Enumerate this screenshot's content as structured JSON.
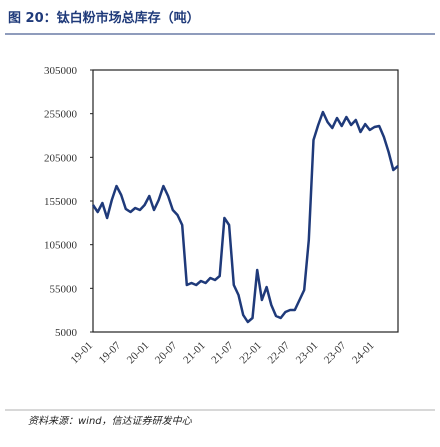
{
  "chart_data": {
    "type": "line",
    "title": "图 20：钛白粉市场总库存（吨）",
    "source": "资料来源：wind，信达证券研发中心",
    "categories": [
      "19-01",
      null,
      null,
      null,
      null,
      null,
      "19-07",
      null,
      null,
      null,
      null,
      null,
      "20-01",
      null,
      null,
      null,
      null,
      null,
      "20-07",
      null,
      null,
      null,
      null,
      null,
      "21-01",
      null,
      null,
      null,
      null,
      null,
      "21-07",
      null,
      null,
      null,
      null,
      null,
      "22-01",
      null,
      null,
      null,
      null,
      null,
      "22-07",
      null,
      null,
      null,
      null,
      null,
      "23-01",
      null,
      null,
      null,
      null,
      null,
      "23-07",
      null,
      null,
      null,
      null,
      null,
      "24-01",
      null,
      null,
      null,
      null,
      null
    ],
    "series": [
      {
        "name": "钛白粉市场总库存",
        "color": "#1f3a7a",
        "values": [
          150400,
          142400,
          152700,
          135500,
          156100,
          172200,
          161900,
          145800,
          142400,
          147000,
          144700,
          150400,
          160700,
          144700,
          156100,
          172200,
          160700,
          144700,
          139000,
          127500,
          58800,
          61100,
          58800,
          63400,
          61100,
          66800,
          64500,
          69100,
          135500,
          127500,
          58800,
          47400,
          24500,
          16500,
          21000,
          76000,
          41600,
          56500,
          35900,
          23300,
          21000,
          27900,
          30200,
          30200,
          41600,
          53100,
          110300,
          224800,
          242000,
          256900,
          245400,
          238600,
          250000,
          240900,
          251200,
          242000,
          247700,
          234000,
          243100,
          236300,
          239700,
          240900,
          228300,
          211100,
          190500,
          195100
        ]
      }
    ],
    "ylim": [
      5000,
      305000
    ],
    "yticks": [
      5000,
      55000,
      105000,
      155000,
      205000,
      255000,
      305000
    ]
  }
}
